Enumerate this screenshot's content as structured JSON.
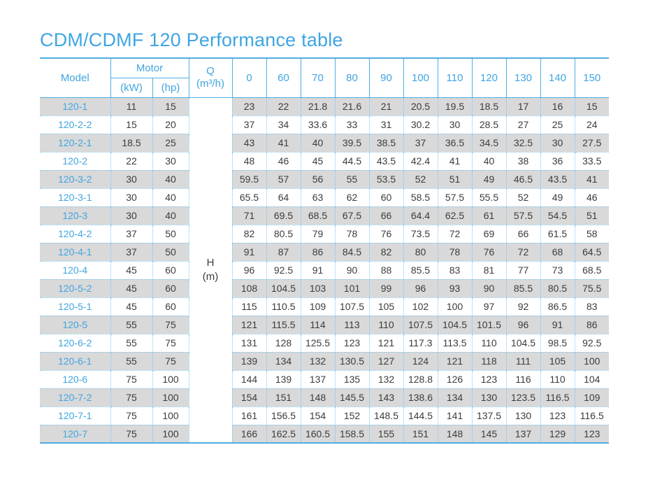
{
  "title": "CDM/CDMF 120 Performance table",
  "colors": {
    "accent_blue": "#3fa5e2",
    "solid_border_blue": "#4fade3",
    "dotted_border_blue": "#7fc4ec",
    "row_stripe_gray": "#d9d9d9",
    "body_text": "#3c3c3c"
  },
  "table": {
    "headers": {
      "model": "Model",
      "motor": "Motor",
      "kw": "(kW)",
      "hp": "(hp)",
      "q_line1": "Q",
      "q_line2": "(m³/h)",
      "h_line1": "H",
      "h_line2": "(m)",
      "flow_values": [
        "0",
        "60",
        "70",
        "80",
        "90",
        "100",
        "110",
        "120",
        "130",
        "140",
        "150"
      ]
    },
    "rows": [
      {
        "model": "120-1",
        "kw": "11",
        "hp": "15",
        "values": [
          "23",
          "22",
          "21.8",
          "21.6",
          "21",
          "20.5",
          "19.5",
          "18.5",
          "17",
          "16",
          "15"
        ]
      },
      {
        "model": "120-2-2",
        "kw": "15",
        "hp": "20",
        "values": [
          "37",
          "34",
          "33.6",
          "33",
          "31",
          "30.2",
          "30",
          "28.5",
          "27",
          "25",
          "24"
        ]
      },
      {
        "model": "120-2-1",
        "kw": "18.5",
        "hp": "25",
        "values": [
          "43",
          "41",
          "40",
          "39.5",
          "38.5",
          "37",
          "36.5",
          "34.5",
          "32.5",
          "30",
          "27.5"
        ]
      },
      {
        "model": "120-2",
        "kw": "22",
        "hp": "30",
        "values": [
          "48",
          "46",
          "45",
          "44.5",
          "43.5",
          "42.4",
          "41",
          "40",
          "38",
          "36",
          "33.5"
        ]
      },
      {
        "model": "120-3-2",
        "kw": "30",
        "hp": "40",
        "values": [
          "59.5",
          "57",
          "56",
          "55",
          "53.5",
          "52",
          "51",
          "49",
          "46.5",
          "43.5",
          "41"
        ]
      },
      {
        "model": "120-3-1",
        "kw": "30",
        "hp": "40",
        "values": [
          "65.5",
          "64",
          "63",
          "62",
          "60",
          "58.5",
          "57.5",
          "55.5",
          "52",
          "49",
          "46"
        ]
      },
      {
        "model": "120-3",
        "kw": "30",
        "hp": "40",
        "values": [
          "71",
          "69.5",
          "68.5",
          "67.5",
          "66",
          "64.4",
          "62.5",
          "61",
          "57.5",
          "54.5",
          "51"
        ]
      },
      {
        "model": "120-4-2",
        "kw": "37",
        "hp": "50",
        "values": [
          "82",
          "80.5",
          "79",
          "78",
          "76",
          "73.5",
          "72",
          "69",
          "66",
          "61.5",
          "58"
        ]
      },
      {
        "model": "120-4-1",
        "kw": "37",
        "hp": "50",
        "values": [
          "91",
          "87",
          "86",
          "84.5",
          "82",
          "80",
          "78",
          "76",
          "72",
          "68",
          "64.5"
        ]
      },
      {
        "model": "120-4",
        "kw": "45",
        "hp": "60",
        "values": [
          "96",
          "92.5",
          "91",
          "90",
          "88",
          "85.5",
          "83",
          "81",
          "77",
          "73",
          "68.5"
        ]
      },
      {
        "model": "120-5-2",
        "kw": "45",
        "hp": "60",
        "values": [
          "108",
          "104.5",
          "103",
          "101",
          "99",
          "96",
          "93",
          "90",
          "85.5",
          "80.5",
          "75.5"
        ]
      },
      {
        "model": "120-5-1",
        "kw": "45",
        "hp": "60",
        "values": [
          "115",
          "110.5",
          "109",
          "107.5",
          "105",
          "102",
          "100",
          "97",
          "92",
          "86.5",
          "83"
        ]
      },
      {
        "model": "120-5",
        "kw": "55",
        "hp": "75",
        "values": [
          "121",
          "115.5",
          "114",
          "113",
          "110",
          "107.5",
          "104.5",
          "101.5",
          "96",
          "91",
          "86"
        ]
      },
      {
        "model": "120-6-2",
        "kw": "55",
        "hp": "75",
        "values": [
          "131",
          "128",
          "125.5",
          "123",
          "121",
          "117.3",
          "113.5",
          "110",
          "104.5",
          "98.5",
          "92.5"
        ]
      },
      {
        "model": "120-6-1",
        "kw": "55",
        "hp": "75",
        "values": [
          "139",
          "134",
          "132",
          "130.5",
          "127",
          "124",
          "121",
          "118",
          "111",
          "105",
          "100"
        ]
      },
      {
        "model": "120-6",
        "kw": "75",
        "hp": "100",
        "values": [
          "144",
          "139",
          "137",
          "135",
          "132",
          "128.8",
          "126",
          "123",
          "116",
          "110",
          "104"
        ]
      },
      {
        "model": "120-7-2",
        "kw": "75",
        "hp": "100",
        "values": [
          "154",
          "151",
          "148",
          "145.5",
          "143",
          "138.6",
          "134",
          "130",
          "123.5",
          "116.5",
          "109"
        ]
      },
      {
        "model": "120-7-1",
        "kw": "75",
        "hp": "100",
        "values": [
          "161",
          "156.5",
          "154",
          "152",
          "148.5",
          "144.5",
          "141",
          "137.5",
          "130",
          "123",
          "116.5"
        ]
      },
      {
        "model": "120-7",
        "kw": "75",
        "hp": "100",
        "values": [
          "166",
          "162.5",
          "160.5",
          "158.5",
          "155",
          "151",
          "148",
          "145",
          "137",
          "129",
          "123"
        ]
      }
    ]
  }
}
